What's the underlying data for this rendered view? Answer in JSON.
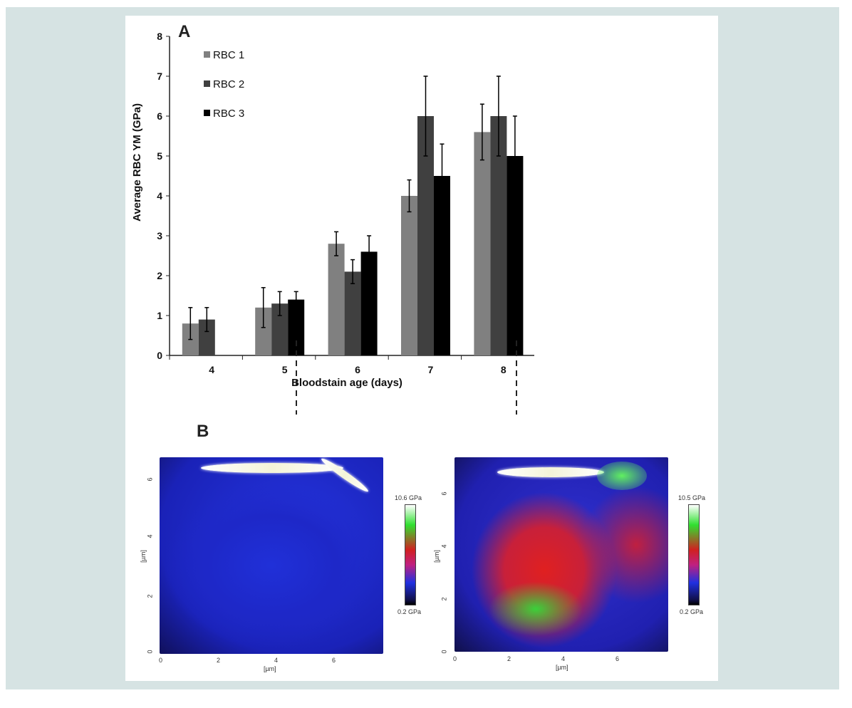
{
  "panel_a_label": "A",
  "panel_b_label": "B",
  "chart_data": {
    "type": "bar",
    "categories": [
      "4",
      "5",
      "6",
      "7",
      "8"
    ],
    "series": [
      {
        "name": "RBC 1",
        "color": "#808080",
        "values": [
          0.8,
          1.2,
          2.8,
          4.0,
          5.6
        ],
        "errors": [
          0.4,
          0.5,
          0.3,
          0.4,
          0.7
        ]
      },
      {
        "name": "RBC 2",
        "color": "#404040",
        "values": [
          0.9,
          1.3,
          2.1,
          6.0,
          6.0
        ],
        "errors": [
          0.3,
          0.3,
          0.3,
          1.0,
          1.0
        ]
      },
      {
        "name": "RBC 3",
        "color": "#000000",
        "values": [
          null,
          1.4,
          2.6,
          4.5,
          5.0
        ],
        "errors": [
          null,
          0.2,
          0.4,
          0.8,
          1.0
        ]
      }
    ],
    "xlabel": "Bloodstain age (days)",
    "ylabel": "Average RBC YM (GPa)",
    "ylim": [
      0,
      8
    ],
    "yticks": [
      "0",
      "1",
      "2",
      "3",
      "4",
      "5",
      "6",
      "7",
      "8"
    ],
    "legend_position": "top-left"
  },
  "maps": [
    {
      "colorbar_max": "10.6 GPa",
      "colorbar_min": "0.2 GPa",
      "xlabel": "[µm]",
      "ylabel": "[µm]",
      "xticks": [
        "0",
        "2",
        "4",
        "6"
      ],
      "yticks": [
        "0",
        "2",
        "4",
        "6"
      ]
    },
    {
      "colorbar_max": "10.5 GPa",
      "colorbar_min": "0.2 GPa",
      "xlabel": "[µm]",
      "ylabel": "[µm]",
      "xticks": [
        "0",
        "2",
        "4",
        "6"
      ],
      "yticks": [
        "0",
        "2",
        "4",
        "6"
      ]
    }
  ]
}
